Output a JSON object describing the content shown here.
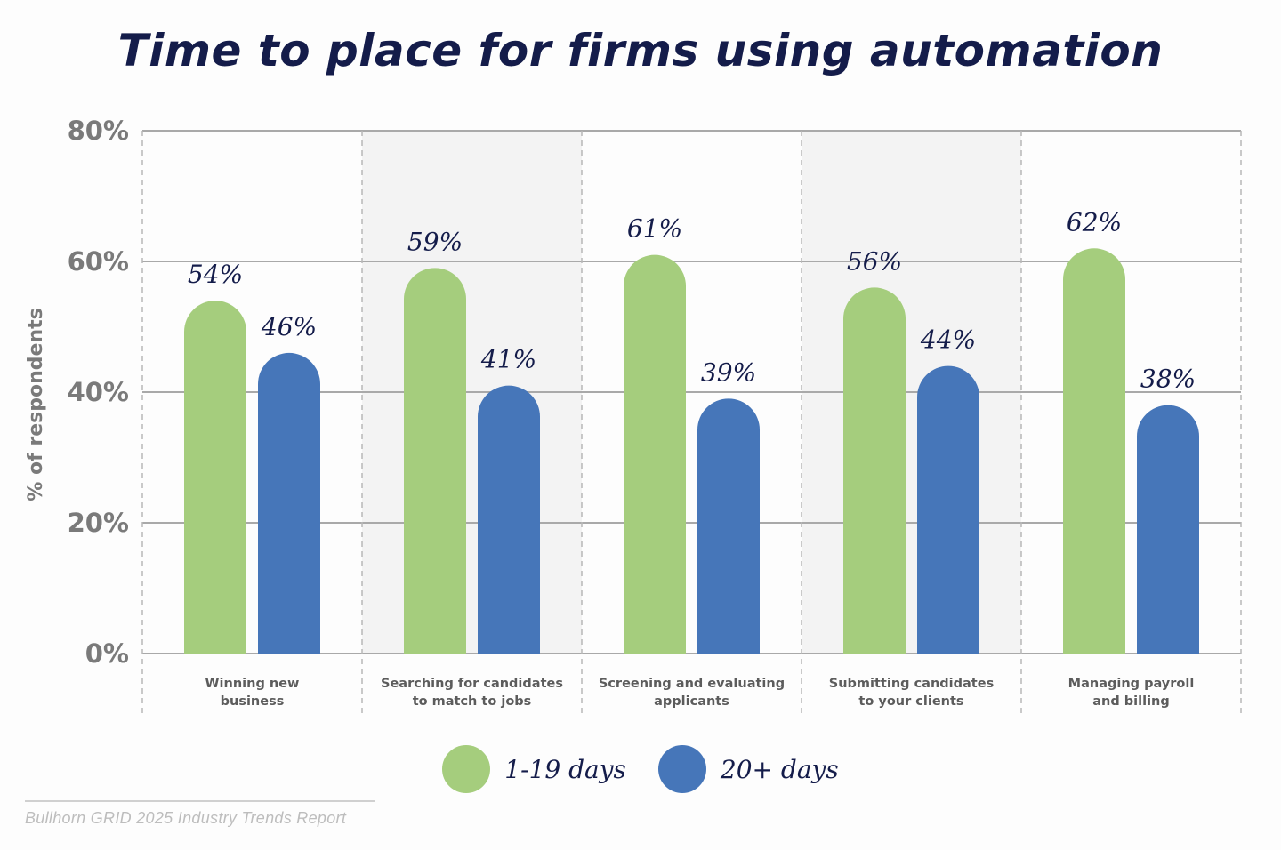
{
  "chart_data": {
    "type": "bar",
    "title": "Time to place for firms using automation",
    "ylabel": "% of respondents",
    "xlabel": "",
    "ylim": [
      0,
      80
    ],
    "yticks": [
      0,
      20,
      40,
      60,
      80
    ],
    "ytick_labels": [
      "0%",
      "20%",
      "40%",
      "60%",
      "80%"
    ],
    "grid": true,
    "legend_position": "bottom",
    "categories": [
      [
        "Winning new",
        "business"
      ],
      [
        "Searching for candidates",
        "to match to jobs"
      ],
      [
        "Screening and evaluating",
        "applicants"
      ],
      [
        "Submitting candidates",
        "to your clients"
      ],
      [
        "Managing payroll",
        "and billing"
      ]
    ],
    "series": [
      {
        "name": "1-19 days",
        "color": "#a5cd7d",
        "values": [
          54,
          59,
          61,
          56,
          62
        ],
        "labels": [
          "54%",
          "59%",
          "61%",
          "56%",
          "62%"
        ]
      },
      {
        "name": "20+ days",
        "color": "#4676b9",
        "values": [
          46,
          41,
          39,
          44,
          38
        ],
        "labels": [
          "46%",
          "41%",
          "39%",
          "44%",
          "38%"
        ]
      }
    ]
  },
  "colors": {
    "title": "#141c4a",
    "axis_text": "#7a7a7a",
    "category_text": "#5c5c5c",
    "value_label": "#141c4a",
    "shade": "#f3f3f3"
  },
  "source": "Bullhorn GRID 2025 Industry Trends Report"
}
